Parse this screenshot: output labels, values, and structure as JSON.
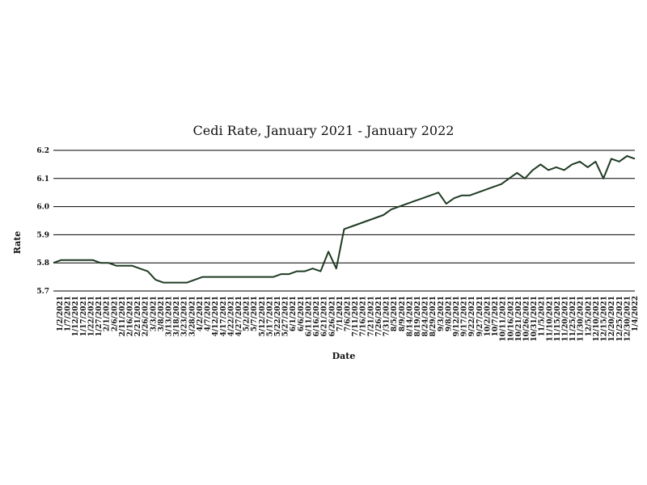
{
  "chart_data": {
    "type": "line",
    "title": "Cedi Rate, January 2021 - January 2022",
    "xlabel": "Date",
    "ylabel": "Rate",
    "ylim": [
      5.7,
      6.2
    ],
    "yticks": [
      "5.7",
      "5.8",
      "5.9",
      "6.0",
      "6.1",
      "6.2"
    ],
    "grid": true,
    "legend": "none",
    "series_color": "#1f3b24",
    "x": [
      "1/2/2021",
      "1/7/2021",
      "1/12/2021",
      "1/17/2021",
      "1/22/2021",
      "1/27/2021",
      "2/1/2021",
      "2/6/2021",
      "2/11/2021",
      "2/16/2021",
      "2/21/2021",
      "2/26/2021",
      "3/3/2021",
      "3/8/2021",
      "3/13/2021",
      "3/18/2021",
      "3/23/2021",
      "3/28/2021",
      "4/2/2021",
      "4/7/2021",
      "4/12/2021",
      "4/17/2021",
      "4/22/2021",
      "4/27/2021",
      "5/2/2021",
      "5/7/2021",
      "5/12/2021",
      "5/17/2021",
      "5/22/2021",
      "5/27/2021",
      "6/1/2021",
      "6/6/2021",
      "6/11/2021",
      "6/16/2021",
      "6/21/2021",
      "6/26/2021",
      "7/1/2021",
      "7/6/2021",
      "7/11/2021",
      "7/16/2021",
      "7/21/2021",
      "7/26/2021",
      "7/31/2021",
      "8/5/2021",
      "8/9/2021",
      "8/14/2021",
      "8/19/2021",
      "8/24/2021",
      "8/29/2021",
      "9/3/2021",
      "9/8/2021",
      "9/12/2021",
      "9/17/2021",
      "9/22/2021",
      "9/27/2021",
      "10/2/2021",
      "10/7/2021",
      "10/11/2021",
      "10/16/2021",
      "10/21/2021",
      "10/26/2021",
      "10/31/2021",
      "11/5/2021",
      "11/10/2021",
      "11/15/2021",
      "11/20/2021",
      "11/25/2021",
      "11/30/2021",
      "12/5/2021",
      "12/10/2021",
      "12/15/2021",
      "12/20/2021",
      "12/25/2021",
      "12/30/2021",
      "1/4/2022"
    ],
    "xtick_labels": [
      "1/2/2021",
      "1/7/2021",
      "1/12/2021",
      "1/17/2021",
      "1/22/2021",
      "1/27/2021",
      "2/1/2021",
      "2/6/2021",
      "2/11/2021",
      "2/16/2021",
      "2/21/2021",
      "2/26/2021",
      "3/3/2021",
      "3/8/2021",
      "3/13/2021",
      "3/18/2021",
      "3/23/2021",
      "3/28/2021",
      "4/2/2021",
      "4/7/2021",
      "4/12/2021",
      "4/17/2021",
      "4/22/2021",
      "4/27/2021",
      "5/2/2021",
      "5/7/2021",
      "5/12/2021",
      "5/17/2021",
      "5/22/2021",
      "5/27/2021",
      "6/1/2021",
      "6/6/2021",
      "6/11/2021",
      "6/16/2021",
      "6/21/2021",
      "6/26/2021",
      "7/1/2021",
      "7/6/2021",
      "7/11/2021",
      "7/16/2021",
      "7/21/2021",
      "7/26/2021",
      "7/31/2021",
      "8/5/2021",
      "8/9/2021",
      "8/14/2021",
      "8/19/2021",
      "8/24/2021",
      "8/29/2021",
      "9/3/2021",
      "9/8/2021",
      "9/12/2021",
      "9/17/2021",
      "9/22/2021",
      "9/27/2021",
      "10/2/2021",
      "10/7/2021",
      "10/11/2021",
      "10/16/2021",
      "10/21/2021",
      "10/26/2021",
      "10/31/2021",
      "11/5/2021",
      "11/10/2021",
      "11/15/2021",
      "11/20/2021",
      "11/25/2021",
      "11/30/2021",
      "12/5/2021",
      "12/10/2021",
      "12/15/2021",
      "12/20/2021",
      "12/25/2021",
      "12/30/2021",
      "1/4/2022"
    ],
    "series": [
      {
        "values": [
          5.8,
          5.81,
          5.81,
          5.81,
          5.81,
          5.81,
          5.8,
          5.8,
          5.79,
          5.79,
          5.79,
          5.78,
          5.77,
          5.74,
          5.73,
          5.73,
          5.73,
          5.73,
          5.74,
          5.75,
          5.75,
          5.75,
          5.75,
          5.75,
          5.75,
          5.75,
          5.75,
          5.75,
          5.75,
          5.76,
          5.76,
          5.77,
          5.77,
          5.78,
          5.77,
          5.84,
          5.78,
          5.92,
          5.93,
          5.94,
          5.95,
          5.96,
          5.97,
          5.99,
          6.0,
          6.01,
          6.02,
          6.03,
          6.04,
          6.05,
          6.01,
          6.03,
          6.04,
          6.04,
          6.05,
          6.06,
          6.07,
          6.08,
          6.1,
          6.12,
          6.1,
          6.13,
          6.15,
          6.13,
          6.14,
          6.13,
          6.15,
          6.16,
          6.14,
          6.16,
          6.1,
          6.17,
          6.16,
          6.18,
          6.17
        ]
      }
    ]
  }
}
